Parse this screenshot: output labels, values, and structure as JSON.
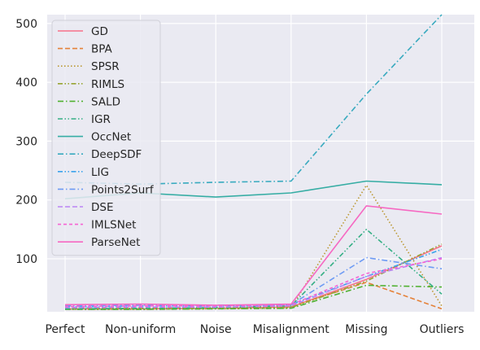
{
  "chart_data": {
    "type": "line",
    "title": "",
    "xlabel": "",
    "ylabel": "",
    "categories": [
      "Perfect",
      "Non-uniform",
      "Noise",
      "Misalignment",
      "Missing",
      "Outliers"
    ],
    "ylim": [
      10,
      515
    ],
    "yticks": [
      100,
      200,
      300,
      400,
      500
    ],
    "grid": true,
    "legend_position": "top-left",
    "series": [
      {
        "name": "GD",
        "color": "#f77189",
        "dash": "solid",
        "values": [
          15,
          15,
          16,
          18,
          65,
          122
        ]
      },
      {
        "name": "BPA",
        "color": "#e5823a",
        "dash": "dashed",
        "values": [
          16,
          16,
          17,
          19,
          60,
          15
        ]
      },
      {
        "name": "SPSR",
        "color": "#bb9832",
        "dash": "dotted",
        "values": [
          14,
          14,
          15,
          16,
          225,
          20
        ]
      },
      {
        "name": "RIMLS",
        "color": "#97a431",
        "dash": "dashdot2",
        "values": [
          15,
          15,
          16,
          17,
          62,
          125
        ]
      },
      {
        "name": "SALD",
        "color": "#50b131",
        "dash": "dashdot",
        "values": [
          14,
          14,
          15,
          16,
          55,
          52
        ]
      },
      {
        "name": "IGR",
        "color": "#34af84",
        "dash": "dashdot2",
        "values": [
          15,
          16,
          17,
          20,
          150,
          40
        ]
      },
      {
        "name": "OccNet",
        "color": "#36ada4",
        "dash": "solid",
        "values": [
          202,
          212,
          205,
          212,
          232,
          226
        ]
      },
      {
        "name": "DeepSDF",
        "color": "#38aabf",
        "dash": "dashdot",
        "values": [
          230,
          227,
          230,
          232,
          380,
          515
        ]
      },
      {
        "name": "LIG",
        "color": "#3ba3ec",
        "dash": "dashdot2",
        "values": [
          18,
          20,
          20,
          22,
          70,
          116
        ]
      },
      {
        "name": "Points2Surf",
        "color": "#6e9bf4",
        "dash": "dashdot",
        "values": [
          20,
          21,
          21,
          22,
          102,
          83
        ]
      },
      {
        "name": "DSE",
        "color": "#bb83f4",
        "dash": "dashed",
        "values": [
          17,
          18,
          18,
          20,
          70,
          102
        ]
      },
      {
        "name": "IMLSNet",
        "color": "#f564d4",
        "dash": "dashed2",
        "values": [
          19,
          20,
          20,
          22,
          75,
          100
        ]
      },
      {
        "name": "ParseNet",
        "color": "#f668c2",
        "dash": "solid",
        "values": [
          22,
          23,
          21,
          23,
          190,
          176
        ]
      }
    ]
  }
}
